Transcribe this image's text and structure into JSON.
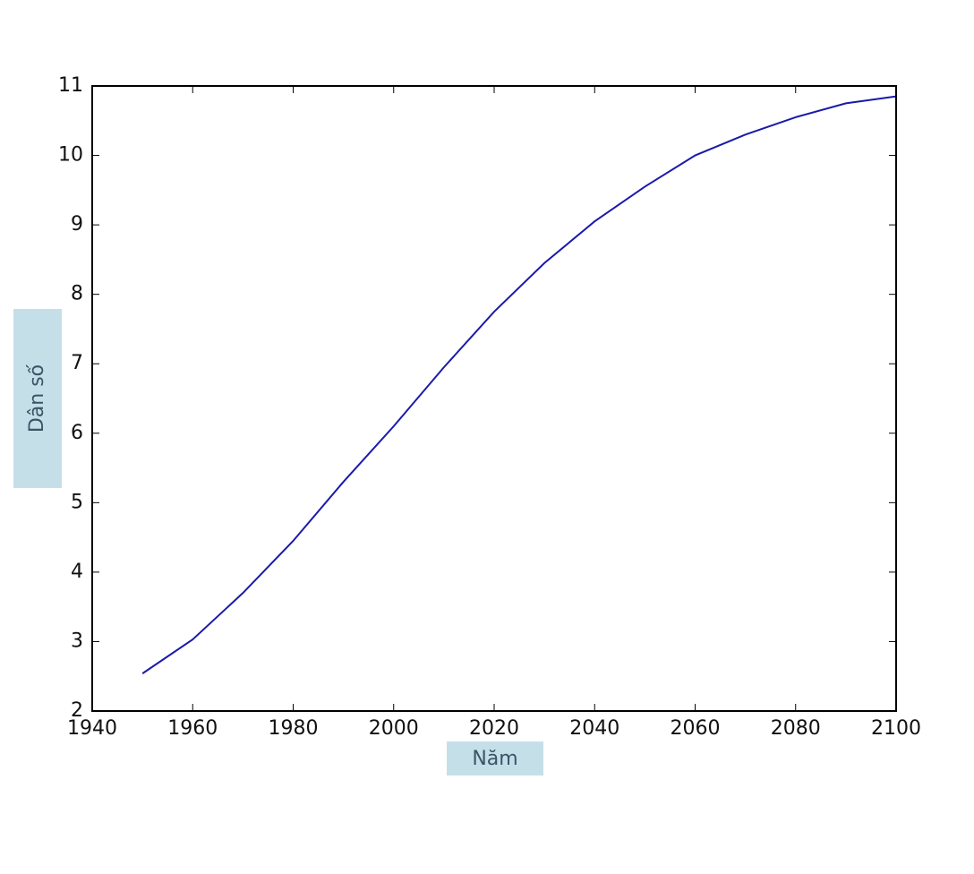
{
  "chart_data": {
    "type": "line",
    "x_label": "Năm",
    "y_label": "Dân số",
    "x": [
      1950,
      1960,
      1970,
      1980,
      1990,
      2000,
      2010,
      2020,
      2030,
      2040,
      2050,
      2060,
      2070,
      2080,
      2090,
      2100
    ],
    "series": [
      {
        "color": "#1a1aaa",
        "values": [
          2.54,
          3.03,
          3.7,
          4.45,
          5.3,
          6.1,
          6.95,
          7.75,
          8.45,
          9.05,
          9.55,
          10.0,
          10.3,
          10.55,
          10.75,
          10.85
        ]
      }
    ],
    "xlim": [
      1940,
      2100
    ],
    "xticks": [
      1940,
      1960,
      1980,
      2000,
      2020,
      2040,
      2060,
      2080,
      2100
    ],
    "ylim": [
      2,
      11
    ],
    "yticks": [
      2,
      3,
      4,
      5,
      6,
      7,
      8,
      9,
      10,
      11
    ],
    "grid": false
  }
}
